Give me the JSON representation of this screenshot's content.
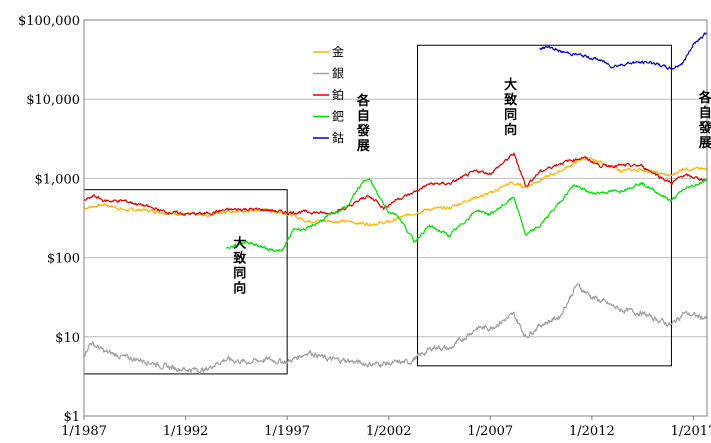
{
  "chart_data": {
    "type": "line",
    "title": "",
    "xlabel": "",
    "ylabel": "",
    "y_scale": "log",
    "ylim": [
      1,
      100000
    ],
    "xlim": [
      "1/1987",
      "9/2017"
    ],
    "grid": "horizontal",
    "legend_position": "top-center",
    "y_ticks": [
      {
        "value": 1,
        "label": "$1"
      },
      {
        "value": 10,
        "label": "$10"
      },
      {
        "value": 100,
        "label": "$100"
      },
      {
        "value": 1000,
        "label": "$1,000"
      },
      {
        "value": 10000,
        "label": "$10,000"
      },
      {
        "value": 100000,
        "label": "$100,000"
      }
    ],
    "x_ticks": [
      {
        "date": "1987-01",
        "label": "1/1987"
      },
      {
        "date": "1992-01",
        "label": "1/1992"
      },
      {
        "date": "1997-01",
        "label": "1/1997"
      },
      {
        "date": "2002-01",
        "label": "1/2002"
      },
      {
        "date": "2007-01",
        "label": "1/2007"
      },
      {
        "date": "2012-01",
        "label": "1/2012"
      },
      {
        "date": "2017-01",
        "label": "1/2017"
      }
    ],
    "series": [
      {
        "name": "金",
        "color": "#FFB300",
        "points": [
          [
            "1987-01",
            420
          ],
          [
            "1988-01",
            470
          ],
          [
            "1989-01",
            400
          ],
          [
            "1990-01",
            400
          ],
          [
            "1991-01",
            370
          ],
          [
            "1992-01",
            355
          ],
          [
            "1993-01",
            340
          ],
          [
            "1994-01",
            385
          ],
          [
            "1995-01",
            385
          ],
          [
            "1996-01",
            400
          ],
          [
            "1997-01",
            360
          ],
          [
            "1998-01",
            290
          ],
          [
            "1999-01",
            290
          ],
          [
            "2000-01",
            285
          ],
          [
            "2001-01",
            265
          ],
          [
            "2002-01",
            280
          ],
          [
            "2003-01",
            350
          ],
          [
            "2004-01",
            410
          ],
          [
            "2005-01",
            425
          ],
          [
            "2006-01",
            550
          ],
          [
            "2007-01",
            650
          ],
          [
            "2008-01",
            880
          ],
          [
            "2008-10",
            780
          ],
          [
            "2009-06",
            950
          ],
          [
            "2010-06",
            1230
          ],
          [
            "2011-08",
            1800
          ],
          [
            "2012-06",
            1620
          ],
          [
            "2013-06",
            1250
          ],
          [
            "2014-06",
            1300
          ],
          [
            "2015-12",
            1070
          ],
          [
            "2016-07",
            1340
          ],
          [
            "2017-09",
            1300
          ]
        ]
      },
      {
        "name": "銀",
        "color": "#A0A0A0",
        "points": [
          [
            "1987-01",
            6
          ],
          [
            "1987-05",
            8.5
          ],
          [
            "1988-01",
            6.5
          ],
          [
            "1989-01",
            5.5
          ],
          [
            "1990-01",
            5
          ],
          [
            "1991-01",
            4.2
          ],
          [
            "1992-01",
            3.9
          ],
          [
            "1993-01",
            3.8
          ],
          [
            "1993-06",
            4.5
          ],
          [
            "1994-01",
            5.2
          ],
          [
            "1995-01",
            4.8
          ],
          [
            "1996-01",
            5.2
          ],
          [
            "1997-01",
            4.8
          ],
          [
            "1998-02",
            6.5
          ],
          [
            "1999-01",
            5.2
          ],
          [
            "2000-01",
            5
          ],
          [
            "2001-01",
            4.5
          ],
          [
            "2002-01",
            4.6
          ],
          [
            "2003-01",
            4.8
          ],
          [
            "2004-04",
            7.5
          ],
          [
            "2005-01",
            7
          ],
          [
            "2006-05",
            13
          ],
          [
            "2007-01",
            13
          ],
          [
            "2008-03",
            19
          ],
          [
            "2008-10",
            10
          ],
          [
            "2009-06",
            14
          ],
          [
            "2010-06",
            18
          ],
          [
            "2011-04",
            45
          ],
          [
            "2012-01",
            32
          ],
          [
            "2013-06",
            22
          ],
          [
            "2014-06",
            20
          ],
          [
            "2015-12",
            14
          ],
          [
            "2016-07",
            20
          ],
          [
            "2017-09",
            17
          ]
        ]
      },
      {
        "name": "鉑",
        "color": "#E00000",
        "points": [
          [
            "1987-01",
            520
          ],
          [
            "1987-07",
            600
          ],
          [
            "1988-01",
            520
          ],
          [
            "1989-01",
            520
          ],
          [
            "1990-01",
            450
          ],
          [
            "1991-01",
            380
          ],
          [
            "1992-01",
            355
          ],
          [
            "1993-01",
            360
          ],
          [
            "1994-01",
            400
          ],
          [
            "1995-01",
            410
          ],
          [
            "1996-01",
            400
          ],
          [
            "1997-01",
            370
          ],
          [
            "1998-01",
            380
          ],
          [
            "1999-01",
            360
          ],
          [
            "2000-01",
            430
          ],
          [
            "2000-12",
            600
          ],
          [
            "2001-06",
            520
          ],
          [
            "2001-10",
            420
          ],
          [
            "2002-06",
            550
          ],
          [
            "2003-01",
            620
          ],
          [
            "2004-01",
            850
          ],
          [
            "2005-01",
            860
          ],
          [
            "2006-05",
            1250
          ],
          [
            "2007-01",
            1150
          ],
          [
            "2008-03",
            2050
          ],
          [
            "2008-10",
            800
          ],
          [
            "2009-06",
            1200
          ],
          [
            "2010-06",
            1550
          ],
          [
            "2011-08",
            1850
          ],
          [
            "2012-06",
            1450
          ],
          [
            "2013-06",
            1450
          ],
          [
            "2014-06",
            1450
          ],
          [
            "2015-12",
            870
          ],
          [
            "2016-07",
            1100
          ],
          [
            "2017-09",
            950
          ]
        ]
      },
      {
        "name": "鈀",
        "color": "#00E000",
        "points": [
          [
            "1994-01",
            130
          ],
          [
            "1995-01",
            160
          ],
          [
            "1996-01",
            130
          ],
          [
            "1996-10",
            120
          ],
          [
            "1997-05",
            230
          ],
          [
            "1998-01",
            230
          ],
          [
            "1999-01",
            330
          ],
          [
            "2000-01",
            450
          ],
          [
            "2000-06",
            700
          ],
          [
            "2001-01",
            1050
          ],
          [
            "2001-06",
            650
          ],
          [
            "2002-01",
            380
          ],
          [
            "2002-06",
            350
          ],
          [
            "2003-04",
            160
          ],
          [
            "2004-01",
            250
          ],
          [
            "2005-01",
            190
          ],
          [
            "2006-05",
            400
          ],
          [
            "2007-01",
            350
          ],
          [
            "2008-03",
            580
          ],
          [
            "2008-10",
            190
          ],
          [
            "2009-06",
            250
          ],
          [
            "2010-06",
            500
          ],
          [
            "2011-02",
            820
          ],
          [
            "2012-01",
            650
          ],
          [
            "2013-06",
            700
          ],
          [
            "2014-06",
            880
          ],
          [
            "2015-12",
            520
          ],
          [
            "2016-07",
            720
          ],
          [
            "2017-09",
            950
          ]
        ]
      },
      {
        "name": "鈷",
        "color": "#0000CC",
        "points": [
          [
            "2009-06",
            45000
          ],
          [
            "2010-01",
            45000
          ],
          [
            "2010-06",
            40000
          ],
          [
            "2011-06",
            36000
          ],
          [
            "2012-01",
            33000
          ],
          [
            "2012-06",
            31000
          ],
          [
            "2013-01",
            26000
          ],
          [
            "2014-01",
            29000
          ],
          [
            "2015-01",
            29000
          ],
          [
            "2015-12",
            24000
          ],
          [
            "2016-07",
            29000
          ],
          [
            "2017-01",
            50000
          ],
          [
            "2017-09",
            70000
          ]
        ]
      }
    ],
    "annotations": [
      {
        "text": "大致同向",
        "x": "1994-09",
        "y": 80
      },
      {
        "text": "各自發展",
        "x": "2000-10",
        "y": 5000
      },
      {
        "text": "大致同向",
        "x": "2008-01",
        "y": 8000
      },
      {
        "text": "各自發展",
        "x": "2017-08",
        "y": 5500
      }
    ],
    "boxes": [
      {
        "x1": "1987-01",
        "x2": "1997-01",
        "y1": 3.4,
        "y2": 720
      },
      {
        "x1": "2003-06",
        "x2": "2015-12",
        "y1": 4.3,
        "y2": 48000
      }
    ]
  }
}
